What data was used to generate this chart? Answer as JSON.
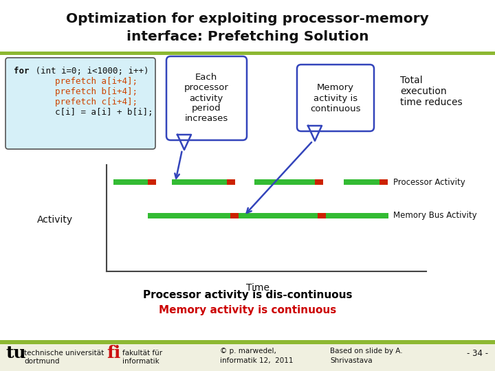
{
  "title_line1": "Optimization for exploiting processor-memory",
  "title_line2": "interface: Prefetching Solution",
  "bg_color": "#ffffff",
  "title_bar_color": "#8db832",
  "footer_bar_color": "#8db832",
  "code_box_bg": "#d6f0f8",
  "code_box_border": "#555555",
  "code_text_black": "for (int i=0; i<1000; i++)",
  "code_text_orange_lines": [
    "        prefetch a[i+4];",
    "        prefetch b[i+4];",
    "        prefetch c[i+4];"
  ],
  "code_text_black2": "        c[i] = a[i] + b[i];",
  "callout1_text": "Each\nprocessor\nactivity\nperiod\nincreases",
  "callout2_text": "Memory\nactivity is\ncontinuous",
  "callout3_text": "Total\nexecution\ntime reduces",
  "activity_label": "Activity",
  "time_label": "Time",
  "proc_activity_label": "Processor Activity",
  "mem_bus_label": "Memory Bus Activity",
  "bottom_text1": "Processor activity is dis-continuous",
  "bottom_text2": "Memory activity is continuous",
  "bottom_text1_color": "#000000",
  "bottom_text2_color": "#cc0000",
  "green_color": "#33bb33",
  "red_color": "#cc2200",
  "footer_left1": "technische universität",
  "footer_left2": "dortmund",
  "footer_mid1": "fakultät für",
  "footer_mid2": "informatik",
  "footer_copy": "© p. marwedel,\ninformatik 12,  2011",
  "footer_based": "Based on slide by A.\nShrivastava",
  "footer_page": "- 34 -",
  "arrow_color": "#3344bb",
  "callout_border": "#3344bb"
}
